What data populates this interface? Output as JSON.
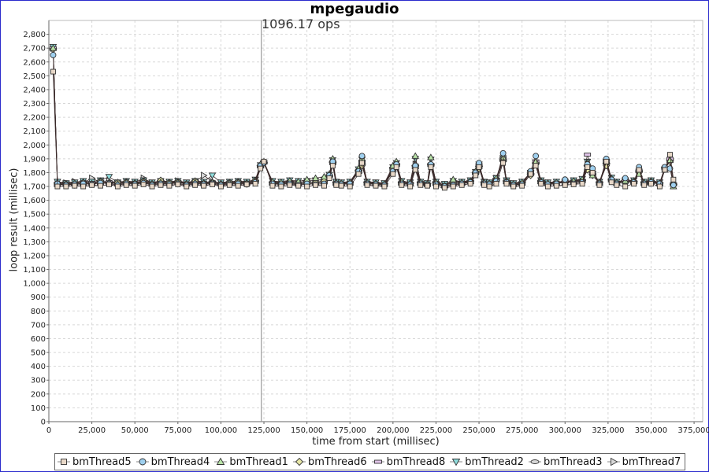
{
  "chart_data": {
    "type": "line",
    "title": "mpegaudio",
    "annotation": "1096.17 ops",
    "marker_x": 123500,
    "xlabel": "time from start (millisec)",
    "ylabel": "loop result (millisec)",
    "xlim": [
      0,
      380000
    ],
    "ylim": [
      0,
      2900
    ],
    "x_ticks": [
      0,
      25000,
      50000,
      75000,
      100000,
      125000,
      150000,
      175000,
      200000,
      225000,
      250000,
      275000,
      300000,
      325000,
      350000,
      375000
    ],
    "x_tick_labels": [
      "0",
      "25,000",
      "50,000",
      "75,000",
      "100,000",
      "125,000",
      "150,000",
      "175,000",
      "200,000",
      "225,000",
      "250,000",
      "275,000",
      "300,000",
      "325,000",
      "350,000",
      "375,000"
    ],
    "y_ticks": [
      0,
      100,
      200,
      300,
      400,
      500,
      600,
      700,
      800,
      900,
      1000,
      1100,
      1200,
      1300,
      1400,
      1500,
      1600,
      1700,
      1800,
      1900,
      2000,
      2100,
      2200,
      2300,
      2400,
      2500,
      2600,
      2700,
      2800
    ],
    "y_tick_labels": [
      "0",
      "100",
      "200",
      "300",
      "400",
      "500",
      "600",
      "700",
      "800",
      "900",
      "1,000",
      "1,100",
      "1,200",
      "1,300",
      "1,400",
      "1,500",
      "1,600",
      "1,700",
      "1,800",
      "1,900",
      "2,000",
      "2,100",
      "2,200",
      "2,300",
      "2,400",
      "2,500",
      "2,600",
      "2,700",
      "2,800"
    ],
    "grid": true,
    "legend_position": "bottom",
    "x": [
      2500,
      5000,
      10000,
      15000,
      20000,
      25000,
      30000,
      35000,
      40000,
      45000,
      50000,
      55000,
      60000,
      65000,
      70000,
      75000,
      80000,
      85000,
      90000,
      95000,
      100000,
      105000,
      110000,
      115000,
      120000,
      123000,
      125000,
      130000,
      135000,
      140000,
      145000,
      150000,
      155000,
      160000,
      163000,
      165000,
      167000,
      170000,
      175000,
      180000,
      182000,
      185000,
      190000,
      195000,
      200000,
      202000,
      205000,
      210000,
      213000,
      216000,
      220000,
      222000,
      225000,
      230000,
      235000,
      240000,
      245000,
      248000,
      250000,
      253000,
      256000,
      260000,
      264000,
      266000,
      270000,
      275000,
      280000,
      283000,
      286000,
      290000,
      295000,
      300000,
      305000,
      310000,
      313000,
      316000,
      320000,
      324000,
      327000,
      330000,
      335000,
      340000,
      343000,
      346000,
      350000,
      355000,
      358000,
      361000,
      363000
    ],
    "series": [
      {
        "name": "bmThread5",
        "marker": "square",
        "values": [
          2530,
          1700,
          1700,
          1705,
          1700,
          1710,
          1705,
          1715,
          1700,
          1710,
          1705,
          1715,
          1700,
          1710,
          1705,
          1715,
          1700,
          1710,
          1705,
          1715,
          1700,
          1710,
          1705,
          1715,
          1720,
          1830,
          1880,
          1705,
          1700,
          1710,
          1705,
          1700,
          1710,
          1705,
          1760,
          1850,
          1710,
          1705,
          1700,
          1790,
          1870,
          1710,
          1705,
          1700,
          1790,
          1840,
          1710,
          1700,
          1820,
          1710,
          1705,
          1840,
          1700,
          1690,
          1700,
          1710,
          1720,
          1780,
          1840,
          1710,
          1700,
          1720,
          1870,
          1720,
          1700,
          1705,
          1790,
          1850,
          1720,
          1700,
          1705,
          1710,
          1715,
          1720,
          1840,
          1800,
          1710,
          1880,
          1730,
          1710,
          1700,
          1720,
          1820,
          1710,
          1720,
          1700,
          1820,
          1930,
          1750
        ]
      },
      {
        "name": "bmThread4",
        "marker": "circle",
        "values": [
          2650,
          1720,
          1710,
          1715,
          1720,
          1715,
          1725,
          1720,
          1710,
          1720,
          1715,
          1725,
          1710,
          1720,
          1715,
          1720,
          1710,
          1720,
          1715,
          1720,
          1710,
          1715,
          1720,
          1715,
          1730,
          1850,
          1870,
          1720,
          1715,
          1720,
          1710,
          1720,
          1715,
          1720,
          1780,
          1880,
          1720,
          1715,
          1720,
          1810,
          1920,
          1720,
          1715,
          1710,
          1810,
          1860,
          1720,
          1715,
          1850,
          1720,
          1710,
          1860,
          1715,
          1700,
          1710,
          1720,
          1730,
          1800,
          1870,
          1720,
          1715,
          1740,
          1940,
          1730,
          1710,
          1715,
          1810,
          1920,
          1730,
          1715,
          1720,
          1750,
          1720,
          1730,
          1860,
          1830,
          1720,
          1900,
          1750,
          1720,
          1760,
          1730,
          1840,
          1720,
          1730,
          1720,
          1840,
          1830,
          1710
        ]
      },
      {
        "name": "bmThread1",
        "marker": "triangle-up",
        "values": [
          2700,
          1730,
          1720,
          1725,
          1730,
          1720,
          1735,
          1725,
          1720,
          1730,
          1725,
          1735,
          1720,
          1730,
          1725,
          1730,
          1720,
          1730,
          1725,
          1730,
          1720,
          1725,
          1730,
          1725,
          1740,
          1860,
          1880,
          1735,
          1730,
          1740,
          1735,
          1750,
          1760,
          1770,
          1790,
          1900,
          1730,
          1725,
          1730,
          1830,
          1900,
          1730,
          1725,
          1720,
          1850,
          1880,
          1735,
          1725,
          1920,
          1730,
          1720,
          1910,
          1730,
          1710,
          1750,
          1730,
          1740,
          1810,
          1850,
          1730,
          1725,
          1760,
          1910,
          1740,
          1720,
          1730,
          1800,
          1880,
          1740,
          1725,
          1730,
          1730,
          1740,
          1750,
          1870,
          1780,
          1730,
          1880,
          1760,
          1730,
          1740,
          1740,
          1790,
          1730,
          1740,
          1725,
          1820,
          1890,
          1700
        ]
      },
      {
        "name": "bmThread6",
        "marker": "diamond",
        "values": [
          2690,
          1715,
          1720,
          1710,
          1730,
          1720,
          1740,
          1725,
          1730,
          1735,
          1725,
          1740,
          1720,
          1745,
          1730,
          1735,
          1720,
          1740,
          1725,
          1730,
          1720,
          1730,
          1735,
          1725,
          1745,
          1840,
          1870,
          1725,
          1720,
          1730,
          1720,
          1735,
          1730,
          1740,
          1770,
          1860,
          1725,
          1720,
          1725,
          1820,
          1850,
          1725,
          1720,
          1715,
          1830,
          1850,
          1725,
          1720,
          1830,
          1725,
          1715,
          1850,
          1725,
          1705,
          1730,
          1725,
          1735,
          1790,
          1830,
          1725,
          1720,
          1750,
          1880,
          1735,
          1715,
          1725,
          1780,
          1860,
          1735,
          1720,
          1725,
          1725,
          1735,
          1740,
          1820,
          1780,
          1725,
          1850,
          1740,
          1725,
          1730,
          1730,
          1800,
          1725,
          1735,
          1720,
          1830,
          1880,
          1720
        ]
      },
      {
        "name": "bmThread8",
        "marker": "bar",
        "values": [
          2700,
          1710,
          1715,
          1720,
          1715,
          1725,
          1720,
          1730,
          1715,
          1725,
          1720,
          1730,
          1715,
          1725,
          1720,
          1730,
          1715,
          1725,
          1720,
          1725,
          1715,
          1720,
          1725,
          1720,
          1735,
          1845,
          1875,
          1720,
          1715,
          1725,
          1715,
          1725,
          1720,
          1730,
          1775,
          1870,
          1720,
          1715,
          1720,
          1805,
          1880,
          1720,
          1715,
          1710,
          1820,
          1855,
          1720,
          1715,
          1840,
          1720,
          1710,
          1855,
          1720,
          1700,
          1720,
          1720,
          1730,
          1795,
          1855,
          1720,
          1715,
          1745,
          1900,
          1730,
          1710,
          1720,
          1805,
          1880,
          1730,
          1715,
          1720,
          1735,
          1730,
          1740,
          1930,
          1800,
          1720,
          1885,
          1745,
          1720,
          1745,
          1730,
          1815,
          1720,
          1730,
          1715,
          1830,
          1900,
          1715
        ]
      },
      {
        "name": "bmThread2",
        "marker": "triangle-down",
        "values": [
          2710,
          1735,
          1725,
          1730,
          1740,
          1735,
          1745,
          1770,
          1730,
          1740,
          1735,
          1745,
          1730,
          1740,
          1735,
          1740,
          1730,
          1740,
          1735,
          1780,
          1730,
          1735,
          1740,
          1735,
          1750,
          1855,
          1870,
          1740,
          1735,
          1745,
          1740,
          1740,
          1745,
          1750,
          1785,
          1890,
          1735,
          1730,
          1735,
          1825,
          1895,
          1735,
          1730,
          1725,
          1840,
          1870,
          1740,
          1730,
          1900,
          1735,
          1725,
          1895,
          1735,
          1720,
          1740,
          1735,
          1745,
          1805,
          1860,
          1735,
          1730,
          1760,
          1905,
          1745,
          1725,
          1735,
          1800,
          1875,
          1745,
          1730,
          1735,
          1735,
          1745,
          1755,
          1880,
          1785,
          1735,
          1875,
          1765,
          1735,
          1745,
          1745,
          1800,
          1735,
          1745,
          1730,
          1825,
          1885,
          1710
        ]
      },
      {
        "name": "bmThread3",
        "marker": "ellipse",
        "values": [
          2695,
          1725,
          1730,
          1720,
          1735,
          1725,
          1740,
          1730,
          1735,
          1730,
          1725,
          1740,
          1725,
          1740,
          1730,
          1735,
          1725,
          1740,
          1730,
          1735,
          1725,
          1730,
          1735,
          1730,
          1740,
          1850,
          1872,
          1730,
          1725,
          1735,
          1725,
          1735,
          1730,
          1740,
          1775,
          1875,
          1730,
          1725,
          1730,
          1815,
          1860,
          1730,
          1725,
          1720,
          1835,
          1860,
          1730,
          1725,
          1850,
          1730,
          1720,
          1860,
          1730,
          1710,
          1735,
          1730,
          1740,
          1800,
          1845,
          1730,
          1725,
          1755,
          1890,
          1740,
          1720,
          1730,
          1790,
          1870,
          1740,
          1725,
          1730,
          1730,
          1740,
          1745,
          1850,
          1790,
          1730,
          1865,
          1750,
          1730,
          1740,
          1735,
          1810,
          1730,
          1740,
          1725,
          1835,
          1890,
          1715
        ]
      },
      {
        "name": "bmThread7",
        "marker": "triangle-right",
        "values": [
          2700,
          1720,
          1725,
          1735,
          1725,
          1760,
          1730,
          1740,
          1725,
          1735,
          1730,
          1760,
          1725,
          1735,
          1730,
          1740,
          1725,
          1735,
          1780,
          1735,
          1725,
          1730,
          1735,
          1730,
          1745,
          1840,
          1865,
          1730,
          1725,
          1735,
          1725,
          1735,
          1730,
          1740,
          1780,
          1865,
          1730,
          1725,
          1730,
          1810,
          1870,
          1730,
          1725,
          1720,
          1830,
          1860,
          1730,
          1725,
          1860,
          1730,
          1720,
          1850,
          1730,
          1710,
          1735,
          1730,
          1740,
          1800,
          1850,
          1730,
          1725,
          1760,
          1880,
          1740,
          1720,
          1730,
          1795,
          1870,
          1740,
          1725,
          1730,
          1730,
          1740,
          1750,
          1860,
          1790,
          1730,
          1860,
          1750,
          1730,
          1740,
          1735,
          1805,
          1730,
          1740,
          1725,
          1830,
          1885,
          1710
        ]
      }
    ]
  },
  "colors": {
    "marker_fills": {
      "bmThread5": "#e8d8c8",
      "bmThread4": "#9fd0ef",
      "bmThread1": "#b9e3a8",
      "bmThread6": "#e7e7a7",
      "bmThread8": "#e0c4e8",
      "bmThread2": "#8fdcdc",
      "bmThread3": "#d8d8d8",
      "bmThread7": "#d8d8d8"
    },
    "marker_stroke": "#333333",
    "line": "#3a2a2a",
    "grid": "#d8d8d8",
    "marker_line": "#888888"
  }
}
